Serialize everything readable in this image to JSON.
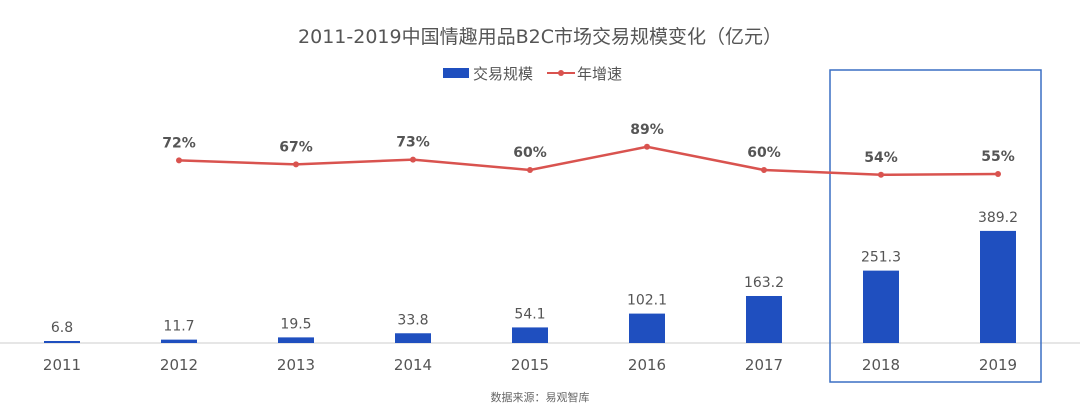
{
  "chart_data": {
    "type": "bar+line",
    "title": "2011-2019中国情趣用品B2C市场交易规模变化（亿元）",
    "categories": [
      "2011",
      "2012",
      "2013",
      "2014",
      "2015",
      "2016",
      "2017",
      "2018",
      "2019"
    ],
    "series": [
      {
        "name": "交易规模",
        "type": "bar",
        "color": "#1f4fbf",
        "values": [
          6.8,
          11.7,
          19.5,
          33.8,
          54.1,
          102.1,
          163.2,
          251.3,
          389.2
        ],
        "labels": [
          "6.8",
          "11.7",
          "19.5",
          "33.8",
          "54.1",
          "102.1",
          "163.2",
          "251.3",
          "389.2"
        ]
      },
      {
        "name": "年增速",
        "type": "line",
        "color": "#d9534f",
        "values": [
          null,
          72,
          67,
          73,
          60,
          89,
          60,
          54,
          55
        ],
        "labels": [
          "",
          "72%",
          "67%",
          "73%",
          "60%",
          "89%",
          "60%",
          "54%",
          "55%"
        ]
      }
    ],
    "legend_position": "top",
    "grid": false,
    "highlight": {
      "categories": [
        "2018",
        "2019"
      ],
      "color": "#3a6fc4"
    },
    "source": "数据来源：易观智库"
  }
}
